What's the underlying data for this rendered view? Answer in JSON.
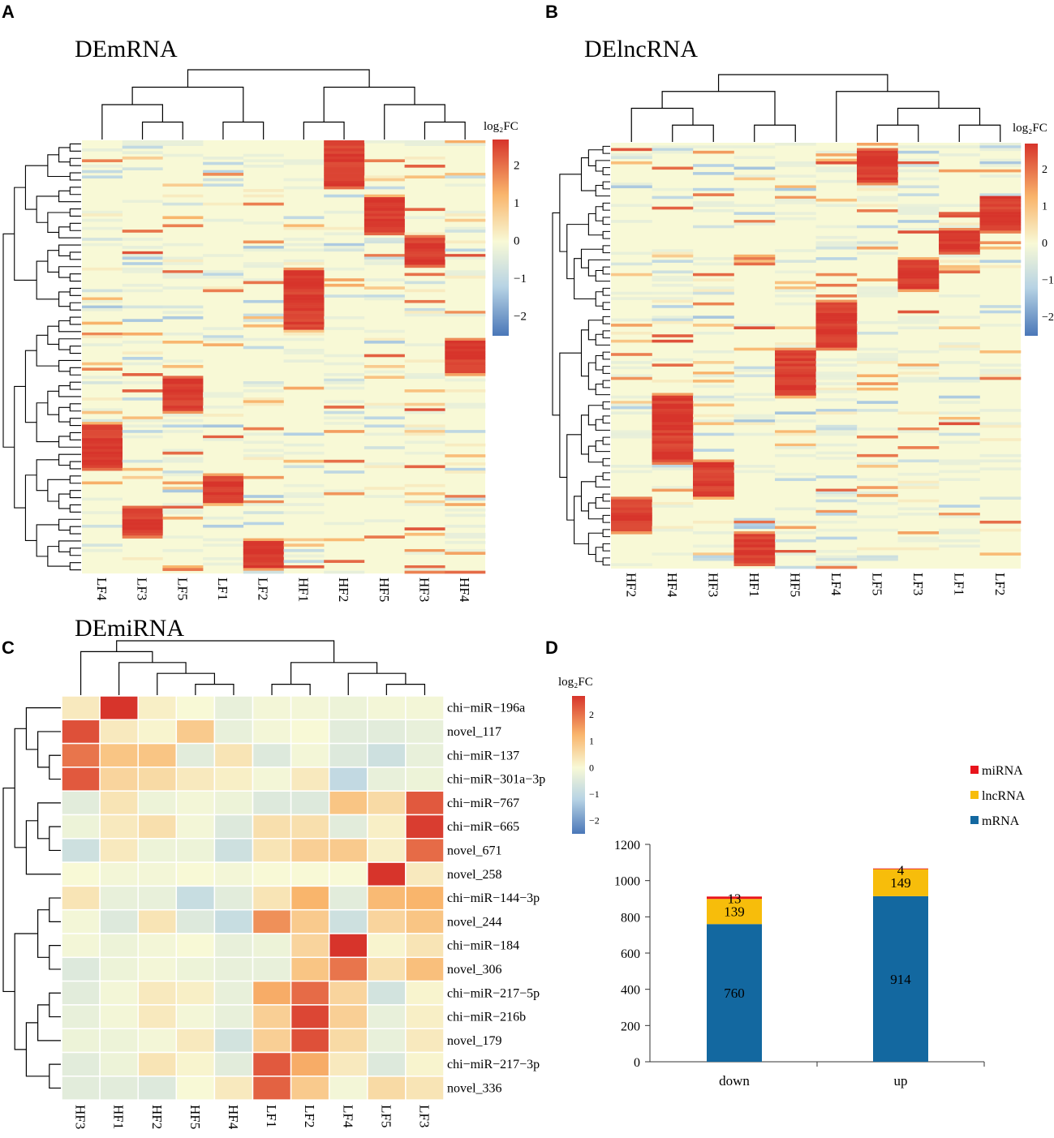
{
  "colors": {
    "neutral": "#f8f9d6",
    "low": "#4a77b8",
    "light_low": "#dce9ee",
    "light_high": "#fde7b0",
    "mid_high": "#f9a96a",
    "high": "#d7342b",
    "bar_mRNA": "#1368a0",
    "bar_lncRNA": "#f7bd0b",
    "bar_miRNA": "#e8141c"
  },
  "panel_a": {
    "letter": "A",
    "title": "DEmRNA",
    "legend_title": "log₂FC",
    "legend_ticks": [
      "2",
      "1",
      "0",
      "−1",
      "−2"
    ],
    "columns": [
      "LF4",
      "LF3",
      "LF5",
      "LF1",
      "LF2",
      "HF1",
      "HF2",
      "HF5",
      "HF3",
      "HF4"
    ]
  },
  "panel_b": {
    "letter": "B",
    "title": "DElncRNA",
    "legend_title": "log₂FC",
    "legend_ticks": [
      "2",
      "1",
      "0",
      "−1",
      "−2"
    ],
    "columns": [
      "HF2",
      "HF4",
      "HF3",
      "HF1",
      "HF5",
      "LF4",
      "LF5",
      "LF3",
      "LF1",
      "LF2"
    ]
  },
  "panel_c": {
    "letter": "C",
    "title": "DEmiRNA",
    "legend_title": "log₂FC",
    "legend_ticks": [
      "2",
      "1",
      "0",
      "−1",
      "−2"
    ]
  },
  "panel_d": {
    "letter": "D",
    "legend": [
      "miRNA",
      "lncRNA",
      "mRNA"
    ]
  },
  "chart_data": [
    {
      "type": "heatmap",
      "panel": "A",
      "title": "DEmRNA",
      "value_label": "log2FC",
      "columns": [
        "LF4",
        "LF3",
        "LF5",
        "LF1",
        "LF2",
        "HF1",
        "HF2",
        "HF5",
        "HF3",
        "HF4"
      ],
      "color_range": [
        -2.5,
        2.7
      ],
      "description": "Row-clustered DE mRNA heatmap; each column has a block of high log2FC genes"
    },
    {
      "type": "heatmap",
      "panel": "B",
      "title": "DElncRNA",
      "value_label": "log2FC",
      "columns": [
        "HF2",
        "HF4",
        "HF3",
        "HF1",
        "HF5",
        "LF4",
        "LF5",
        "LF3",
        "LF1",
        "LF2"
      ],
      "color_range": [
        -2.5,
        2.7
      ]
    },
    {
      "type": "heatmap",
      "panel": "C",
      "title": "DEmiRNA",
      "value_label": "log2FC",
      "color_range": [
        -2.5,
        2.7
      ],
      "columns": [
        "HF3",
        "HF1",
        "HF2",
        "HF5",
        "HF4",
        "LF1",
        "LF2",
        "LF4",
        "LF5",
        "LF3"
      ],
      "rows": [
        "chi−miR−196a",
        "novel_117",
        "chi−miR−137",
        "chi−miR−301a−3p",
        "chi−miR−767",
        "chi−miR−665",
        "novel_671",
        "novel_258",
        "chi−miR−144−3p",
        "novel_244",
        "chi−miR−184",
        "novel_306",
        "chi−miR−217−5p",
        "chi−miR−216b",
        "novel_179",
        "chi−miR−217−3p",
        "novel_336"
      ],
      "values": [
        [
          0.3,
          2.8,
          0.2,
          0.0,
          -0.3,
          -0.1,
          -0.1,
          -0.2,
          -0.1,
          -0.1
        ],
        [
          2.4,
          0.3,
          0.1,
          0.9,
          -0.3,
          -0.1,
          0.0,
          -0.4,
          -0.4,
          -0.3
        ],
        [
          2.0,
          1.0,
          1.0,
          -0.4,
          0.4,
          -0.5,
          -0.1,
          -0.5,
          -0.8,
          -0.3
        ],
        [
          2.3,
          0.7,
          0.6,
          0.3,
          0.2,
          -0.1,
          0.3,
          -1.0,
          -0.3,
          -0.2
        ],
        [
          -0.4,
          0.4,
          -0.2,
          -0.1,
          -0.2,
          -0.5,
          -0.5,
          1.0,
          0.6,
          2.3
        ],
        [
          -0.2,
          0.3,
          0.5,
          -0.1,
          -0.5,
          0.5,
          0.5,
          -0.4,
          0.2,
          2.6
        ],
        [
          -0.8,
          0.3,
          -0.2,
          -0.2,
          -0.8,
          0.4,
          0.8,
          0.9,
          0.2,
          2.1
        ],
        [
          0.0,
          -0.1,
          -0.1,
          0.0,
          -0.1,
          0.0,
          0.0,
          0.0,
          2.7,
          0.3
        ],
        [
          0.4,
          -0.3,
          -0.3,
          -0.9,
          -0.4,
          0.4,
          1.3,
          -0.4,
          1.2,
          1.3
        ],
        [
          -0.1,
          -0.5,
          0.4,
          -0.5,
          -0.9,
          1.7,
          0.9,
          -0.8,
          0.7,
          1.0
        ],
        [
          -0.1,
          -0.2,
          -0.1,
          0.0,
          -0.3,
          -0.2,
          0.7,
          2.7,
          0.1,
          0.4
        ],
        [
          -0.5,
          -0.2,
          -0.1,
          -0.2,
          -0.3,
          -0.3,
          1.0,
          2.0,
          0.5,
          1.1
        ],
        [
          -0.4,
          -0.1,
          0.3,
          0.2,
          -0.3,
          1.4,
          2.1,
          0.7,
          -0.7,
          0.1
        ],
        [
          -0.3,
          -0.1,
          0.3,
          -0.1,
          -0.3,
          0.8,
          2.5,
          0.8,
          -0.3,
          0.2
        ],
        [
          -0.2,
          -0.2,
          -0.1,
          0.3,
          -0.7,
          0.8,
          2.4,
          0.6,
          -0.3,
          0.3
        ],
        [
          -0.4,
          -0.2,
          0.4,
          0.1,
          -0.4,
          2.3,
          1.4,
          0.3,
          -0.5,
          0.1
        ],
        [
          -0.4,
          -0.4,
          -0.5,
          0.0,
          0.3,
          2.2,
          0.9,
          -0.1,
          0.6,
          0.4
        ]
      ]
    },
    {
      "type": "bar",
      "panel": "D",
      "stacked": true,
      "categories": [
        "down",
        "up"
      ],
      "series": [
        {
          "name": "mRNA",
          "values": [
            760,
            914
          ]
        },
        {
          "name": "lncRNA",
          "values": [
            139,
            149
          ]
        },
        {
          "name": "miRNA",
          "values": [
            13,
            4
          ]
        }
      ],
      "ylim": [
        0,
        1200
      ],
      "yticks": [
        "0",
        "200",
        "400",
        "600",
        "800",
        "1000",
        "1200"
      ],
      "legend_position": "top-right"
    }
  ]
}
